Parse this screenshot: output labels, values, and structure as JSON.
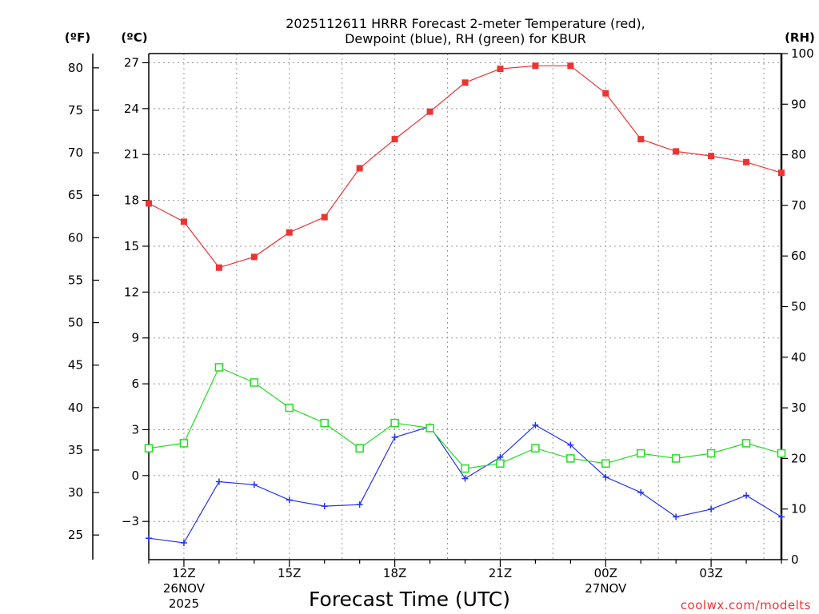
{
  "chart_data": {
    "type": "line",
    "title_line1": "2025112611 HRRR Forecast 2-meter Temperature (red),",
    "title_line2": "Dewpoint (blue), RH (green) for KBUR",
    "xlabel": "Forecast Time (UTC)",
    "credit": "coolwx.com/modelts",
    "unit_left_f": "(ºF)",
    "unit_left_c": "(ºC)",
    "unit_right_rh": "(RH)",
    "x_hours_utc": [
      11,
      12,
      13,
      14,
      15,
      16,
      17,
      18,
      19,
      20,
      21,
      22,
      23,
      24,
      25,
      26,
      27,
      28,
      29
    ],
    "x_range": [
      11,
      29
    ],
    "x_ticks": [
      {
        "hour": 12,
        "label": "12Z",
        "sub1": "26NOV",
        "sub2": "2025"
      },
      {
        "hour": 15,
        "label": "15Z",
        "sub1": "",
        "sub2": ""
      },
      {
        "hour": 18,
        "label": "18Z",
        "sub1": "",
        "sub2": ""
      },
      {
        "hour": 21,
        "label": "21Z",
        "sub1": "",
        "sub2": ""
      },
      {
        "hour": 24,
        "label": "00Z",
        "sub1": "27NOV",
        "sub2": ""
      },
      {
        "hour": 27,
        "label": "03Z",
        "sub1": "",
        "sub2": ""
      }
    ],
    "c_axis": {
      "min": -5.5,
      "max": 27.6,
      "ticks": [
        "27",
        "24",
        "21",
        "18",
        "15",
        "12",
        "9",
        "6",
        "3",
        "0",
        "−3"
      ],
      "tick_values": [
        27,
        24,
        21,
        18,
        15,
        12,
        9,
        6,
        3,
        0,
        -3
      ]
    },
    "f_axis": {
      "ticks": [
        "80",
        "75",
        "70",
        "65",
        "60",
        "55",
        "50",
        "45",
        "40",
        "35",
        "30",
        "25"
      ],
      "tick_values": [
        80,
        75,
        70,
        65,
        60,
        55,
        50,
        45,
        40,
        35,
        30,
        25
      ]
    },
    "rh_axis": {
      "min": 0,
      "max": 100,
      "ticks": [
        "100",
        "90",
        "80",
        "70",
        "60",
        "50",
        "40",
        "30",
        "20",
        "10",
        "0"
      ],
      "tick_values": [
        100,
        90,
        80,
        70,
        60,
        50,
        40,
        30,
        20,
        10,
        0
      ]
    },
    "series": [
      {
        "name": "2-meter Temperature",
        "unit": "°C",
        "color": "#ee3333",
        "marker": "filled-square",
        "values": [
          17.8,
          16.6,
          13.6,
          14.3,
          15.9,
          16.9,
          20.1,
          22.0,
          23.8,
          25.7,
          26.6,
          26.8,
          26.8,
          25.0,
          22.0,
          21.2,
          20.9,
          20.5,
          19.8
        ]
      },
      {
        "name": "Dewpoint",
        "unit": "°C",
        "color": "#2233ee",
        "marker": "plus",
        "values": [
          -4.1,
          -4.4,
          -0.4,
          -0.6,
          -1.6,
          -2.0,
          -1.9,
          2.5,
          3.2,
          -0.2,
          1.2,
          3.3,
          2.0,
          -0.1,
          -1.1,
          -2.7,
          -2.2,
          -1.3,
          -2.7
        ]
      },
      {
        "name": "Relative Humidity",
        "unit": "%",
        "color": "#22dd22",
        "marker": "open-square",
        "values": [
          22,
          23,
          38,
          35,
          30,
          27,
          22,
          27,
          26,
          18,
          19,
          22,
          20,
          19,
          21,
          20,
          21,
          23,
          21
        ]
      }
    ]
  }
}
